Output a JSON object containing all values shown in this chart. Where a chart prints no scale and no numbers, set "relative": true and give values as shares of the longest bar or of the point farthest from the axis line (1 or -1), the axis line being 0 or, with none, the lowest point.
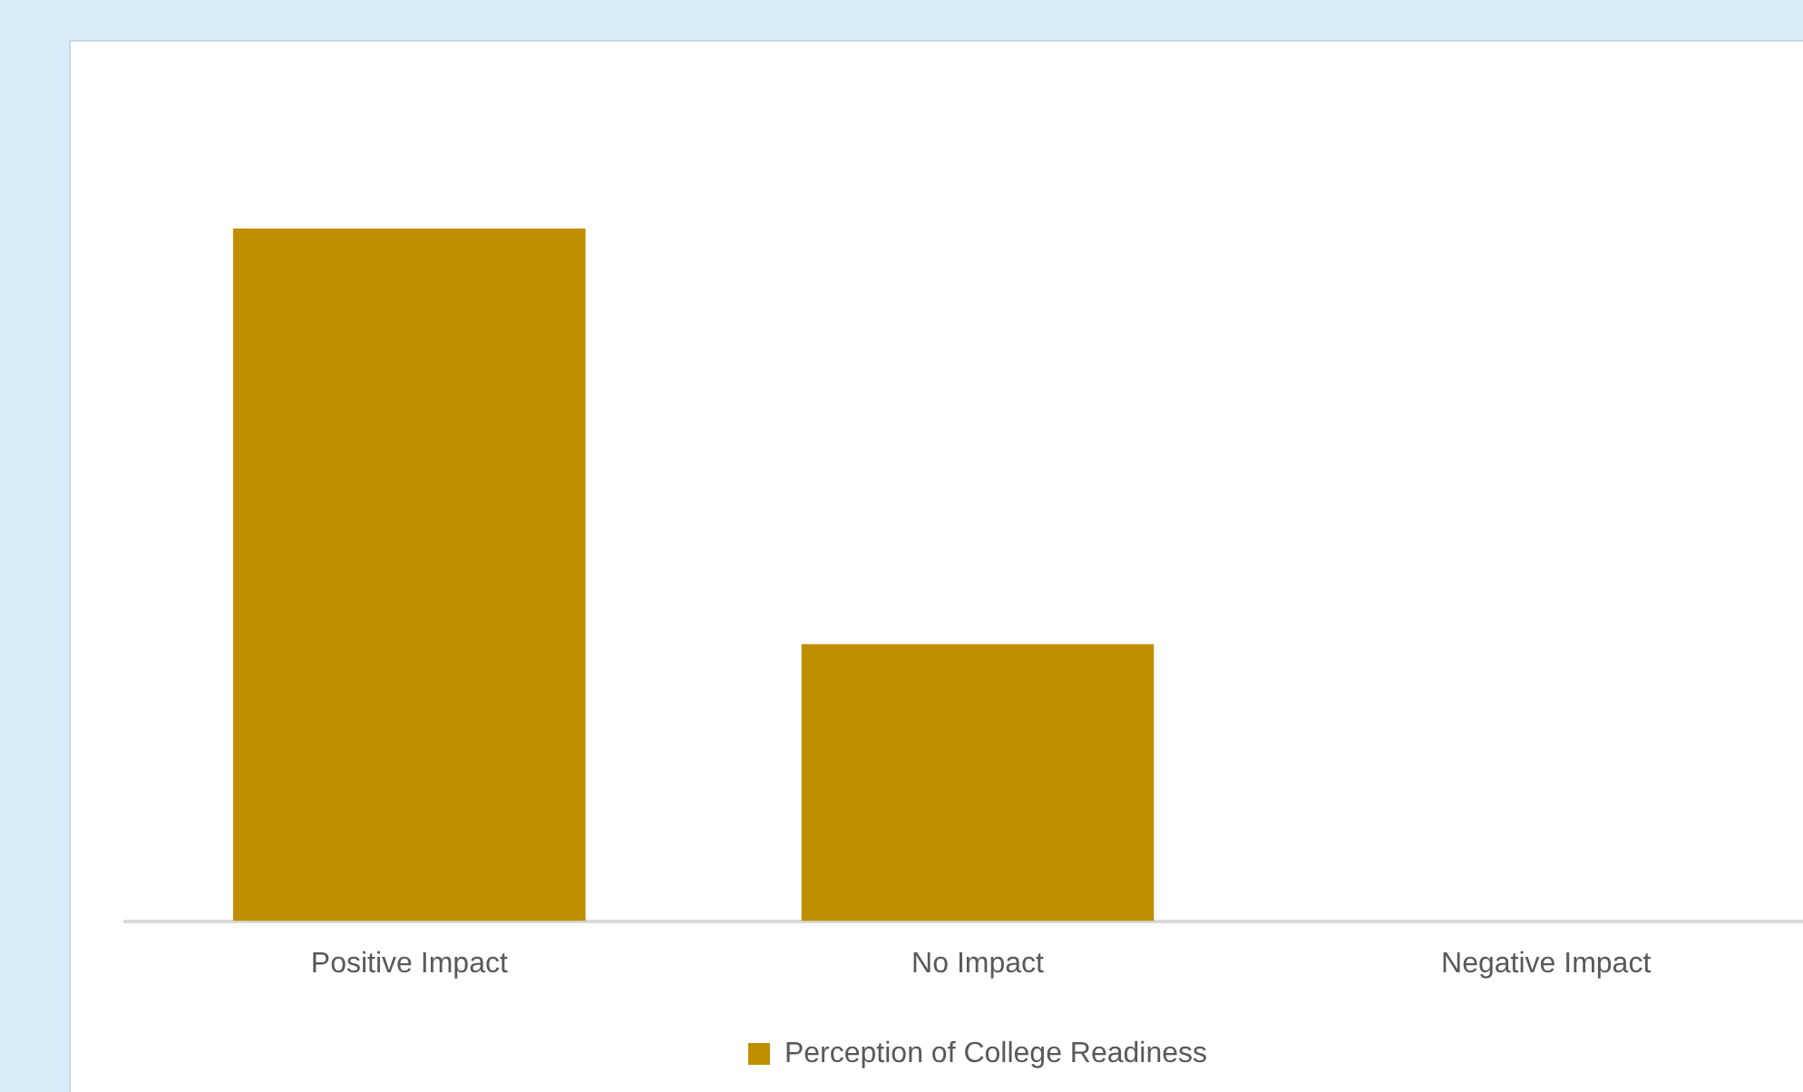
{
  "chart_data": {
    "type": "bar",
    "categories": [
      "Positive Impact",
      "No Impact",
      "Negative Impact"
    ],
    "series": [
      {
        "name": "Perception of College Readiness",
        "color": "#bf8f00",
        "values": [
          1,
          0.4,
          0
        ]
      }
    ],
    "relative": true,
    "legend": "bottom",
    "grid": false
  }
}
